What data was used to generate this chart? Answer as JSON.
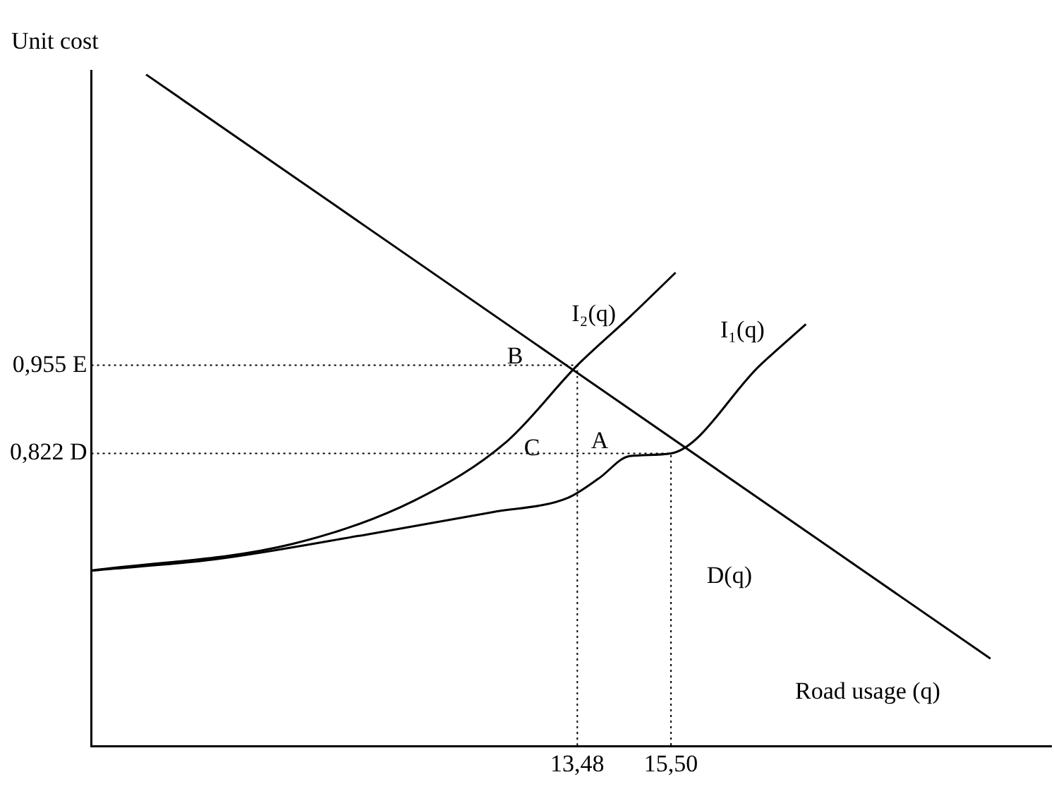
{
  "chart_data": {
    "type": "line",
    "xlabel": "Road usage (q)",
    "ylabel": "Unit cost",
    "xlim": [
      3.0,
      23.7
    ],
    "ylim": [
      0.38,
      1.4
    ],
    "xticks": [
      {
        "value": 13.48,
        "label": "13,48"
      },
      {
        "value": 15.5,
        "label": "15,50"
      }
    ],
    "yticks": [
      {
        "value": 0.955,
        "label": "0,955 E"
      },
      {
        "value": 0.822,
        "label": "0,822 D"
      }
    ],
    "grid": false,
    "legend": false,
    "marker": "none",
    "series": [
      {
        "name": "D(q)",
        "color": "#000000",
        "line_style": "solid",
        "x": [
          4.18,
          22.39
        ],
        "values": [
          1.394,
          0.512
        ]
      },
      {
        "name": "I₁(q)",
        "color": "#000000",
        "line_style": "solid",
        "x": [
          3.0,
          5.67,
          8.98,
          11.63,
          13.28,
          13.94,
          14.61,
          15.5,
          17.42,
          18.41
        ],
        "values": [
          0.645,
          0.662,
          0.7,
          0.733,
          0.755,
          0.784,
          0.818,
          0.822,
          0.955,
          1.017
        ]
      },
      {
        "name": "I₂(q)",
        "color": "#000000",
        "line_style": "solid",
        "x": [
          3.0,
          7.32,
          9.97,
          11.96,
          13.48,
          14.61,
          15.6
        ],
        "values": [
          0.645,
          0.685,
          0.751,
          0.84,
          0.955,
          1.028,
          1.095
        ]
      },
      {
        "color": "#000000",
        "line_style": "dotted",
        "x": [
          3.0,
          13.48,
          13.48
        ],
        "values": [
          0.955,
          0.955,
          0.38
        ]
      },
      {
        "color": "#000000",
        "line_style": "dotted",
        "x": [
          3.0,
          15.5,
          15.5
        ],
        "values": [
          0.822,
          0.822,
          0.38
        ]
      }
    ],
    "annotations": [
      "B",
      "C",
      "A"
    ]
  }
}
